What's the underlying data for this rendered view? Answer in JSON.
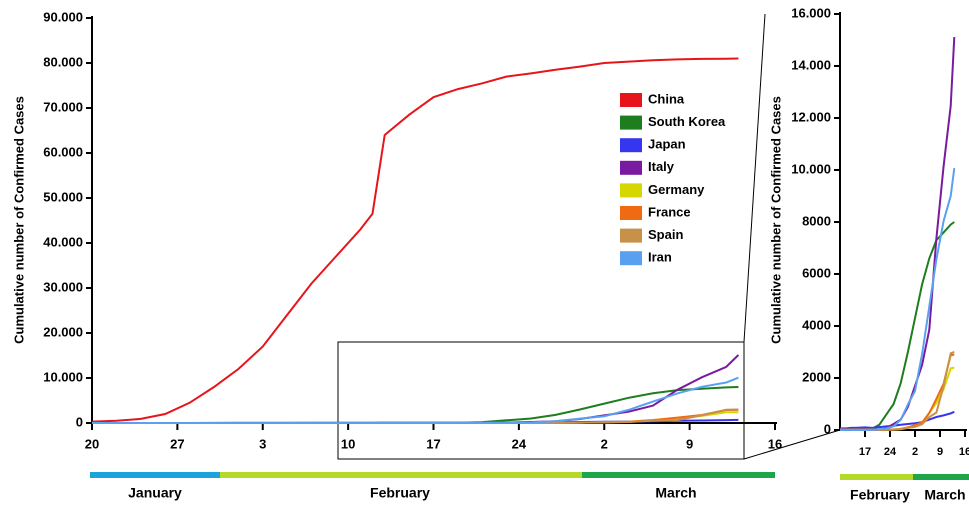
{
  "chart_data": [
    {
      "type": "line",
      "ylabel": "Cumulative number of Confirmed Cases",
      "x": [
        0,
        2,
        4,
        6,
        8,
        10,
        12,
        14,
        16,
        18,
        20,
        22,
        23,
        24,
        26,
        28,
        30,
        32,
        34,
        36,
        38,
        40,
        42,
        44,
        46,
        48,
        50,
        52,
        53
      ],
      "xlim": [
        0,
        56
      ],
      "xticks": [
        {
          "value": 0,
          "label": "20"
        },
        {
          "value": 7,
          "label": "27"
        },
        {
          "value": 14,
          "label": "3"
        },
        {
          "value": 21,
          "label": "10"
        },
        {
          "value": 28,
          "label": "17"
        },
        {
          "value": 35,
          "label": "24"
        },
        {
          "value": 42,
          "label": "2"
        },
        {
          "value": 49,
          "label": "9"
        },
        {
          "value": 56,
          "label": "16"
        }
      ],
      "ylim": [
        0,
        90000
      ],
      "yticks": [
        0,
        {
          "value": 10000,
          "label": "10.000"
        },
        {
          "value": 20000,
          "label": "20.000"
        },
        {
          "value": 30000,
          "label": "30.000"
        },
        {
          "value": 40000,
          "label": "40.000"
        },
        {
          "value": 50000,
          "label": "50.000"
        },
        {
          "value": 60000,
          "label": "60.000"
        },
        {
          "value": 70000,
          "label": "70.000"
        },
        {
          "value": 80000,
          "label": "80.000"
        },
        {
          "value": 90000,
          "label": "90.000"
        }
      ],
      "months": [
        "January",
        "February",
        "March"
      ],
      "month_colors": [
        "#1ca3dd",
        "#b5d92a",
        "#1fa64a"
      ],
      "series": [
        {
          "name": "China",
          "color": "#e8141b",
          "values": [
            300,
            500,
            900,
            2000,
            4500,
            8000,
            12000,
            17000,
            24000,
            31000,
            37000,
            43000,
            46500,
            64000,
            68500,
            72400,
            74200,
            75500,
            77000,
            77700,
            78500,
            79200,
            80000,
            80300,
            80600,
            80800,
            80900,
            80950,
            81000
          ]
        },
        {
          "name": "South Korea",
          "color": "#1e7d1e",
          "values": [
            0,
            0,
            0,
            0,
            5,
            10,
            15,
            20,
            25,
            28,
            30,
            30,
            30,
            30,
            30,
            30,
            50,
            200,
            600,
            1000,
            1800,
            3000,
            4300,
            5600,
            6600,
            7300,
            7600,
            7900,
            8000
          ]
        },
        {
          "name": "Japan",
          "color": "#3636f0",
          "values": [
            0,
            0,
            2,
            5,
            10,
            20,
            25,
            30,
            30,
            40,
            50,
            60,
            70,
            80,
            90,
            100,
            80,
            110,
            140,
            160,
            200,
            230,
            260,
            300,
            400,
            500,
            560,
            640,
            700
          ]
        },
        {
          "name": "Italy",
          "color": "#7a1aa0",
          "values": [
            0,
            0,
            0,
            0,
            0,
            0,
            2,
            2,
            3,
            3,
            3,
            3,
            3,
            3,
            3,
            3,
            3,
            3,
            76,
            229,
            400,
            888,
            1694,
            2502,
            3858,
            7375,
            10149,
            12462,
            15113
          ]
        },
        {
          "name": "Germany",
          "color": "#d6d600",
          "values": [
            0,
            0,
            0,
            0,
            4,
            10,
            12,
            14,
            16,
            16,
            16,
            16,
            16,
            16,
            16,
            16,
            16,
            16,
            16,
            20,
            50,
            100,
            150,
            260,
            670,
            1040,
            1570,
            2370,
            2400
          ]
        },
        {
          "name": "France",
          "color": "#f06a14",
          "values": [
            0,
            0,
            3,
            3,
            5,
            6,
            6,
            6,
            11,
            11,
            11,
            11,
            11,
            11,
            12,
            12,
            12,
            12,
            12,
            18,
            40,
            100,
            190,
            290,
            650,
            1200,
            1780,
            2880,
            2900
          ]
        },
        {
          "name": "Spain",
          "color": "#c8914a",
          "values": [
            0,
            0,
            0,
            0,
            0,
            0,
            1,
            1,
            1,
            2,
            2,
            2,
            2,
            2,
            2,
            2,
            2,
            2,
            2,
            10,
            30,
            80,
            120,
            220,
            500,
            670,
            1700,
            2950,
            3000
          ]
        },
        {
          "name": "Iran",
          "color": "#5aa0f0",
          "values": [
            0,
            0,
            0,
            0,
            0,
            0,
            0,
            0,
            0,
            0,
            0,
            0,
            0,
            0,
            0,
            0,
            5,
            30,
            60,
            140,
            390,
            980,
            1500,
            2920,
            4750,
            6570,
            8040,
            9000,
            10075
          ]
        }
      ]
    },
    {
      "type": "line",
      "ylabel": "Cumulative number of Confirmed Cases",
      "xlim": [
        21,
        56
      ],
      "xticks": [
        {
          "value": 28,
          "label": "17"
        },
        {
          "value": 35,
          "label": "24"
        },
        {
          "value": 42,
          "label": "2"
        },
        {
          "value": 49,
          "label": "9"
        },
        {
          "value": 56,
          "label": "16"
        }
      ],
      "ylim": [
        0,
        16000
      ],
      "yticks": [
        0,
        2000,
        4000,
        6000,
        8000,
        {
          "value": 10000,
          "label": "10.000"
        },
        {
          "value": 12000,
          "label": "12.000"
        },
        {
          "value": 14000,
          "label": "14.000"
        },
        {
          "value": 16000,
          "label": "16.000"
        }
      ],
      "months": [
        "February",
        "March"
      ],
      "month_colors": [
        "#b5d92a",
        "#1fa64a"
      ]
    }
  ]
}
